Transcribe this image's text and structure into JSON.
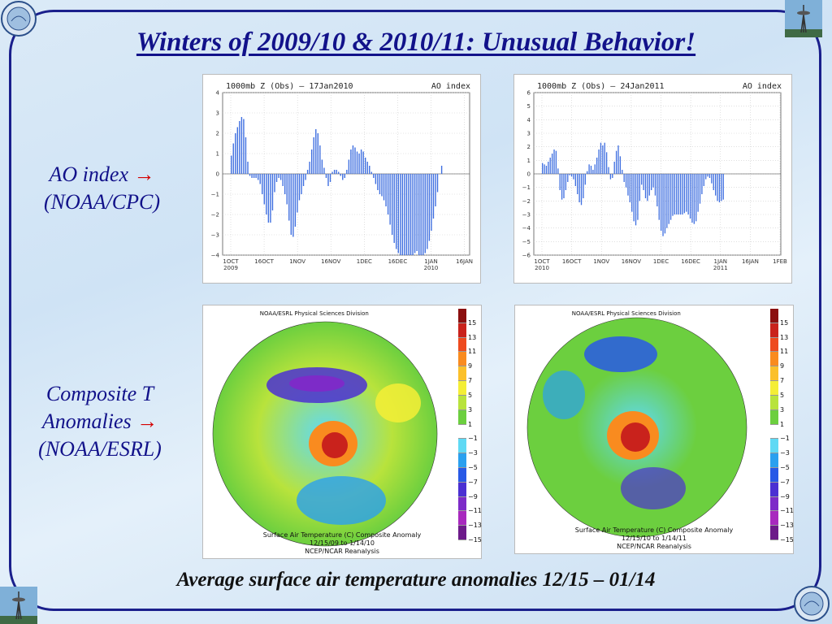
{
  "title": "Winters of 2009/10 & 2010/11: Unusual Behavior!",
  "labels": {
    "ao_line1": "AO index",
    "ao_arrow": "→",
    "ao_line2": "(NOAA/CPC)",
    "ct_line1": "Composite T",
    "ct_line2": "Anomalies",
    "ct_arrow": "→",
    "ct_line3": "(NOAA/ESRL)"
  },
  "footer": "Average surface air temperature anomalies 12/15 – 01/14",
  "chart_data": [
    {
      "type": "bar",
      "title_left": "1000mb Z (Obs) – 17Jan2010",
      "title_right": "AO index",
      "ylim": [
        -4,
        4
      ],
      "yticks": [
        "4",
        "3",
        "2",
        "1",
        "0",
        "−1",
        "−2",
        "−3",
        "−4"
      ],
      "xticks": [
        "1OCT",
        "16OCT",
        "1NOV",
        "16NOV",
        "1DEC",
        "16DEC",
        "1JAN",
        "16JAN"
      ],
      "xyears": [
        {
          "at": "1OCT",
          "label": "2009"
        },
        {
          "at": "1JAN",
          "label": "2010"
        }
      ],
      "bar_color": "#3f6fe0",
      "values": [
        0.9,
        1.5,
        2.0,
        2.3,
        2.6,
        2.8,
        2.7,
        1.8,
        0.6,
        -0.1,
        -0.2,
        -0.2,
        -0.2,
        -0.3,
        -0.5,
        -1.0,
        -1.5,
        -2.0,
        -2.4,
        -2.4,
        -1.8,
        -0.9,
        -0.4,
        -0.2,
        -0.3,
        -0.6,
        -1.0,
        -1.5,
        -2.3,
        -3.0,
        -3.1,
        -2.6,
        -1.9,
        -1.3,
        -1.0,
        -0.6,
        -0.3,
        0.2,
        0.6,
        1.2,
        1.8,
        2.2,
        2.0,
        1.4,
        0.7,
        0.3,
        -0.2,
        -0.6,
        -0.4,
        0.1,
        0.2,
        0.2,
        0.1,
        -0.1,
        -0.3,
        -0.2,
        0.2,
        0.7,
        1.2,
        1.4,
        1.3,
        1.1,
        1.0,
        1.2,
        1.1,
        0.8,
        0.6,
        0.4,
        0.1,
        -0.2,
        -0.5,
        -0.8,
        -1.0,
        -1.1,
        -1.3,
        -1.6,
        -2.0,
        -2.5,
        -3.0,
        -3.4,
        -3.7,
        -3.9,
        -4.0,
        -4.0,
        -4.0,
        -4.0,
        -4.0,
        -4.0,
        -4.0,
        -3.9,
        -3.8,
        -4.0,
        -4.0,
        -4.0,
        -3.9,
        -3.7,
        -3.3,
        -2.8,
        -2.2,
        -1.6,
        -0.9,
        0.0,
        0.4
      ],
      "x_label": "",
      "y_label": ""
    },
    {
      "type": "bar",
      "title_left": "1000mb Z (Obs) – 24Jan2011",
      "title_right": "AO index",
      "ylim": [
        -6,
        6
      ],
      "yticks": [
        "6",
        "5",
        "4",
        "3",
        "2",
        "1",
        "0",
        "−1",
        "−2",
        "−3",
        "−4",
        "−5",
        "−6"
      ],
      "xticks": [
        "1OCT",
        "16OCT",
        "1NOV",
        "16NOV",
        "1DEC",
        "16DEC",
        "1JAN",
        "16JAN",
        "1FEB"
      ],
      "xyears": [
        {
          "at": "1OCT",
          "label": "2010"
        },
        {
          "at": "1JAN",
          "label": "2011"
        }
      ],
      "bar_color": "#3f6fe0",
      "values": [
        0.8,
        0.7,
        0.6,
        0.9,
        1.2,
        1.5,
        1.8,
        1.7,
        0.4,
        -1.2,
        -1.9,
        -1.8,
        -1.2,
        -0.6,
        -0.1,
        -0.2,
        -0.4,
        -0.9,
        -1.5,
        -2.1,
        -2.3,
        -1.8,
        -0.8,
        0.2,
        0.7,
        0.6,
        0.3,
        0.7,
        1.2,
        1.8,
        2.3,
        2.1,
        2.3,
        1.6,
        0.5,
        -0.4,
        -0.3,
        0.9,
        1.7,
        2.1,
        1.3,
        0.3,
        -0.6,
        -1.0,
        -1.6,
        -2.1,
        -2.8,
        -3.5,
        -3.8,
        -3.4,
        -2.0,
        -0.8,
        -1.2,
        -1.8,
        -2.0,
        -1.6,
        -1.2,
        -1.0,
        -1.6,
        -2.4,
        -3.4,
        -4.2,
        -4.6,
        -4.4,
        -4.0,
        -3.7,
        -3.4,
        -3.1,
        -3.0,
        -3.0,
        -3.0,
        -3.0,
        -3.0,
        -2.9,
        -2.8,
        -3.0,
        -3.3,
        -3.6,
        -3.7,
        -3.5,
        -2.8,
        -2.2,
        -1.5,
        -0.9,
        -0.4,
        -0.2,
        -0.3,
        -0.7,
        -1.2,
        -1.6,
        -2.0,
        -2.1,
        -2.0,
        -1.9
      ],
      "x_label": "",
      "y_label": ""
    }
  ],
  "maps": [
    {
      "header": "NOAA/ESRL Physical Sciences Division",
      "cap1": "Surface Air Temperature (C) Composite Anomaly",
      "cap2": "12/15/09  to 1/14/10",
      "cap3": "NCEP/NCAR Reanalysis"
    },
    {
      "header": "NOAA/ESRL Physical Sciences Division",
      "cap1": "Surface Air Temperature (C) Composite Anomaly",
      "cap2": "12/15/10  to 1/14/11",
      "cap3": "NCEP/NCAR Reanalysis"
    }
  ],
  "colorbar": {
    "labels": [
      "15",
      "13",
      "11",
      "9",
      "7",
      "5",
      "3",
      "1",
      "−1",
      "−3",
      "−5",
      "−7",
      "−9",
      "−11",
      "−13",
      "−15"
    ],
    "colors": [
      "#8b0f0f",
      "#c9221c",
      "#ee4a1e",
      "#f98b1f",
      "#fbc02a",
      "#f4ee36",
      "#b8e33c",
      "#6ccf3f",
      "#ffffff",
      "#5fd9f4",
      "#2aa0ef",
      "#2859e6",
      "#4b30d2",
      "#7d2bc8",
      "#a829be",
      "#6d1a8a"
    ]
  },
  "icons": [
    "seal-icon",
    "space-needle-icon"
  ]
}
